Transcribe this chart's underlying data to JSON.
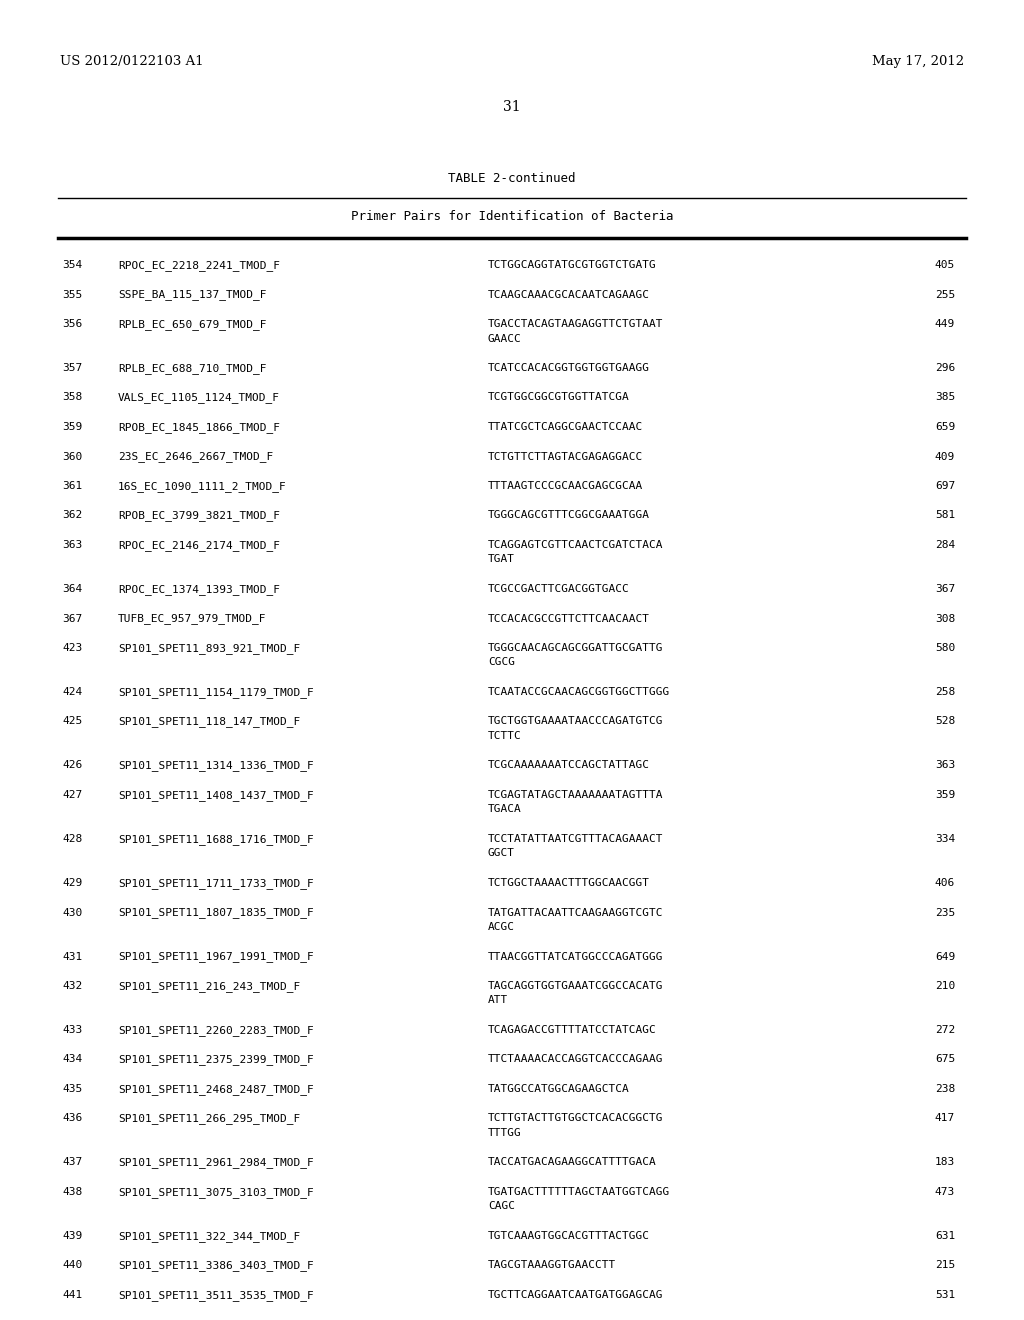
{
  "patent_left": "US 2012/0122103 A1",
  "patent_right": "May 17, 2012",
  "page_number": "31",
  "table_title": "TABLE 2-continued",
  "table_subtitle": "Primer Pairs for Identification of Bacteria",
  "background_color": "#ffffff",
  "text_color": "#000000",
  "rows": [
    [
      "354",
      "RPOC_EC_2218_2241_TMOD_F",
      "TCTGGCAGGTATGCGTGGTCTGATG",
      "405",
      false
    ],
    [
      "355",
      "SSPE_BA_115_137_TMOD_F",
      "TCAAGCAAACGCACAATCAGAAGC",
      "255",
      false
    ],
    [
      "356",
      "RPLB_EC_650_679_TMOD_F",
      "TGACCTACAGTAAGAGGTTCTGTAAT\nGAACC",
      "449",
      true
    ],
    [
      "357",
      "RPLB_EC_688_710_TMOD_F",
      "TCATCCACACGGTGGTGGTGAAGG",
      "296",
      false
    ],
    [
      "358",
      "VALS_EC_1105_1124_TMOD_F",
      "TCGTGGCGGCGTGGTTATCGA",
      "385",
      false
    ],
    [
      "359",
      "RPOB_EC_1845_1866_TMOD_F",
      "TTATCGCTCAGGCGAACTCCAAC",
      "659",
      false
    ],
    [
      "360",
      "23S_EC_2646_2667_TMOD_F",
      "TCTGTTCTTAGTACGAGAGGACC",
      "409",
      false
    ],
    [
      "361",
      "16S_EC_1090_1111_2_TMOD_F",
      "TTTAAGTCCCGCAACGAGCGCAA",
      "697",
      false
    ],
    [
      "362",
      "RPOB_EC_3799_3821_TMOD_F",
      "TGGGCAGCGTTTCGGCGAAATGGA",
      "581",
      false
    ],
    [
      "363",
      "RPOC_EC_2146_2174_TMOD_F",
      "TCAGGAGTCGTTCAACTCGATCTACA\nTGAT",
      "284",
      true
    ],
    [
      "364",
      "RPOC_EC_1374_1393_TMOD_F",
      "TCGCCGACTTCGACGGTGACC",
      "367",
      false
    ],
    [
      "367",
      "TUFB_EC_957_979_TMOD_F",
      "TCCACACGCCGTTCTTCAACAACT",
      "308",
      false
    ],
    [
      "423",
      "SP101_SPET11_893_921_TMOD_F",
      "TGGGCAACAGCAGCGGATTGCGATTG\nCGCG",
      "580",
      true
    ],
    [
      "424",
      "SP101_SPET11_1154_1179_TMOD_F",
      "TCAATACCGCAACAGCGGTGGCTTGGG",
      "258",
      false
    ],
    [
      "425",
      "SP101_SPET11_118_147_TMOD_F",
      "TGCTGGTGAAAATAACCCAGATGTCG\nTCTTC",
      "528",
      true
    ],
    [
      "426",
      "SP101_SPET11_1314_1336_TMOD_F",
      "TCGCAAAAAAATCCAGCTATTAGC",
      "363",
      false
    ],
    [
      "427",
      "SP101_SPET11_1408_1437_TMOD_F",
      "TCGAGTATAGCTAAAAAAATAGTTTA\nTGACA",
      "359",
      true
    ],
    [
      "428",
      "SP101_SPET11_1688_1716_TMOD_F",
      "TCCTATATTAATCGTTTACAGAAACT\nGGCT",
      "334",
      true
    ],
    [
      "429",
      "SP101_SPET11_1711_1733_TMOD_F",
      "TCTGGCTAAAACTTTGGCAACGGT",
      "406",
      false
    ],
    [
      "430",
      "SP101_SPET11_1807_1835_TMOD_F",
      "TATGATTACAATTCAAGAAGGTCGTC\nACGC",
      "235",
      true
    ],
    [
      "431",
      "SP101_SPET11_1967_1991_TMOD_F",
      "TTAACGGTTATCATGGCCCAGATGGG",
      "649",
      false
    ],
    [
      "432",
      "SP101_SPET11_216_243_TMOD_F",
      "TAGCAGGTGGTGAAATCGGCCACATG\nATT",
      "210",
      true
    ],
    [
      "433",
      "SP101_SPET11_2260_2283_TMOD_F",
      "TCAGAGACCGTTTTATCCTATCAGC",
      "272",
      false
    ],
    [
      "434",
      "SP101_SPET11_2375_2399_TMOD_F",
      "TTCTAAAACACCAGGTCACCCAGAAG",
      "675",
      false
    ],
    [
      "435",
      "SP101_SPET11_2468_2487_TMOD_F",
      "TATGGCCATGGCAGAAGCTCA",
      "238",
      false
    ],
    [
      "436",
      "SP101_SPET11_266_295_TMOD_F",
      "TCTTGTACTTGTGGCTCACACGGCTG\nTTTGG",
      "417",
      true
    ],
    [
      "437",
      "SP101_SPET11_2961_2984_TMOD_F",
      "TACCATGACAGAAGGCATTTTGACA",
      "183",
      false
    ],
    [
      "438",
      "SP101_SPET11_3075_3103_TMOD_F",
      "TGATGACTTTTTTAGCTAATGGTCAGG\nCAGC",
      "473",
      true
    ],
    [
      "439",
      "SP101_SPET11_322_344_TMOD_F",
      "TGTCAAAGTGGCACGTTTACTGGC",
      "631",
      false
    ],
    [
      "440",
      "SP101_SPET11_3386_3403_TMOD_F",
      "TAGCGTAAAGGTGAACCTT",
      "215",
      false
    ],
    [
      "441",
      "SP101_SPET11_3511_3535_TMOD_F",
      "TGCTTCAGGAATCAATGATGGAGCAG",
      "531",
      false
    ]
  ]
}
